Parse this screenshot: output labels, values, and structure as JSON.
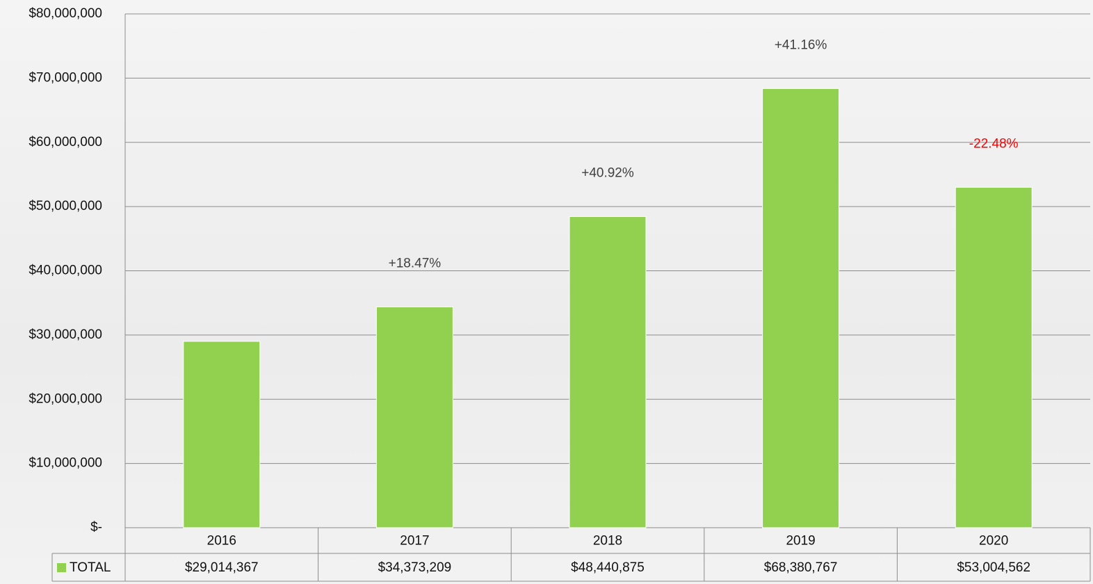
{
  "chart_data": {
    "type": "bar",
    "categories": [
      "2016",
      "2017",
      "2018",
      "2019",
      "2020"
    ],
    "series": [
      {
        "name": "TOTAL",
        "color": "#92d050",
        "values": [
          29014367,
          34373209,
          48440875,
          68380767,
          53004562
        ],
        "value_labels": [
          "$29,014,367",
          "$34,373,209",
          "$48,440,875",
          "$68,380,767",
          "$53,004,562"
        ]
      }
    ],
    "ylim": [
      0,
      80000000
    ],
    "yticks": [
      {
        "value": 0,
        "label": "$-"
      },
      {
        "value": 10000000,
        "label": "$10,000,000"
      },
      {
        "value": 20000000,
        "label": "$20,000,000"
      },
      {
        "value": 30000000,
        "label": "$30,000,000"
      },
      {
        "value": 40000000,
        "label": "$40,000,000"
      },
      {
        "value": 50000000,
        "label": "$50,000,000"
      },
      {
        "value": 60000000,
        "label": "$60,000,000"
      },
      {
        "value": 70000000,
        "label": "$70,000,000"
      },
      {
        "value": 80000000,
        "label": "$80,000,000"
      }
    ],
    "grid": true,
    "annotations": [
      {
        "category": "2017",
        "text": "+18.47%",
        "color": "#404040"
      },
      {
        "category": "2018",
        "text": "+40.92%",
        "color": "#404040"
      },
      {
        "category": "2019",
        "text": "+41.16%",
        "color": "#404040"
      },
      {
        "category": "2020",
        "text": "-22.48%",
        "color": "#ff0000"
      }
    ]
  }
}
